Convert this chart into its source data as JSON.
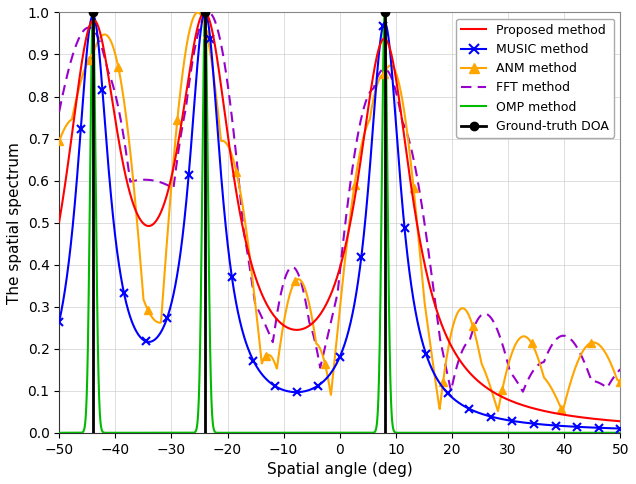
{
  "title": "",
  "xlabel": "Spatial angle (deg)",
  "ylabel": "The spatial spectrum",
  "xlim": [
    -50,
    50
  ],
  "ylim": [
    0,
    1.02
  ],
  "doa_angles": [
    -44,
    -24,
    8
  ],
  "x_ticks": [
    -50,
    -40,
    -30,
    -20,
    -10,
    0,
    10,
    20,
    30,
    40,
    50
  ],
  "y_ticks": [
    0,
    0.1,
    0.2,
    0.3,
    0.4,
    0.5,
    0.6,
    0.7,
    0.8,
    0.9,
    1
  ],
  "colors": {
    "proposed": "#ff0000",
    "music": "#0000ff",
    "anm": "#ffa500",
    "fft": "#9900cc",
    "omp": "#00bb00",
    "ground_truth": "#000000"
  },
  "legend_labels": [
    "Proposed method",
    "MUSIC method",
    "ANM method",
    "FFT method",
    "OMP method",
    "Ground-truth DOA"
  ],
  "anm_marker_positions": [
    -50,
    -44,
    -41,
    -35,
    -24,
    -21,
    -16,
    -10,
    -4,
    0,
    8,
    11,
    16,
    22,
    28,
    34,
    40,
    46,
    50
  ],
  "music_marker_positions": [
    -50,
    -47,
    -44,
    -41,
    -38,
    -35,
    -32,
    -29,
    -24,
    -20,
    -16,
    -12,
    -8,
    -4,
    0,
    4,
    8,
    12,
    16,
    20,
    25,
    30,
    35,
    40,
    45,
    50
  ]
}
